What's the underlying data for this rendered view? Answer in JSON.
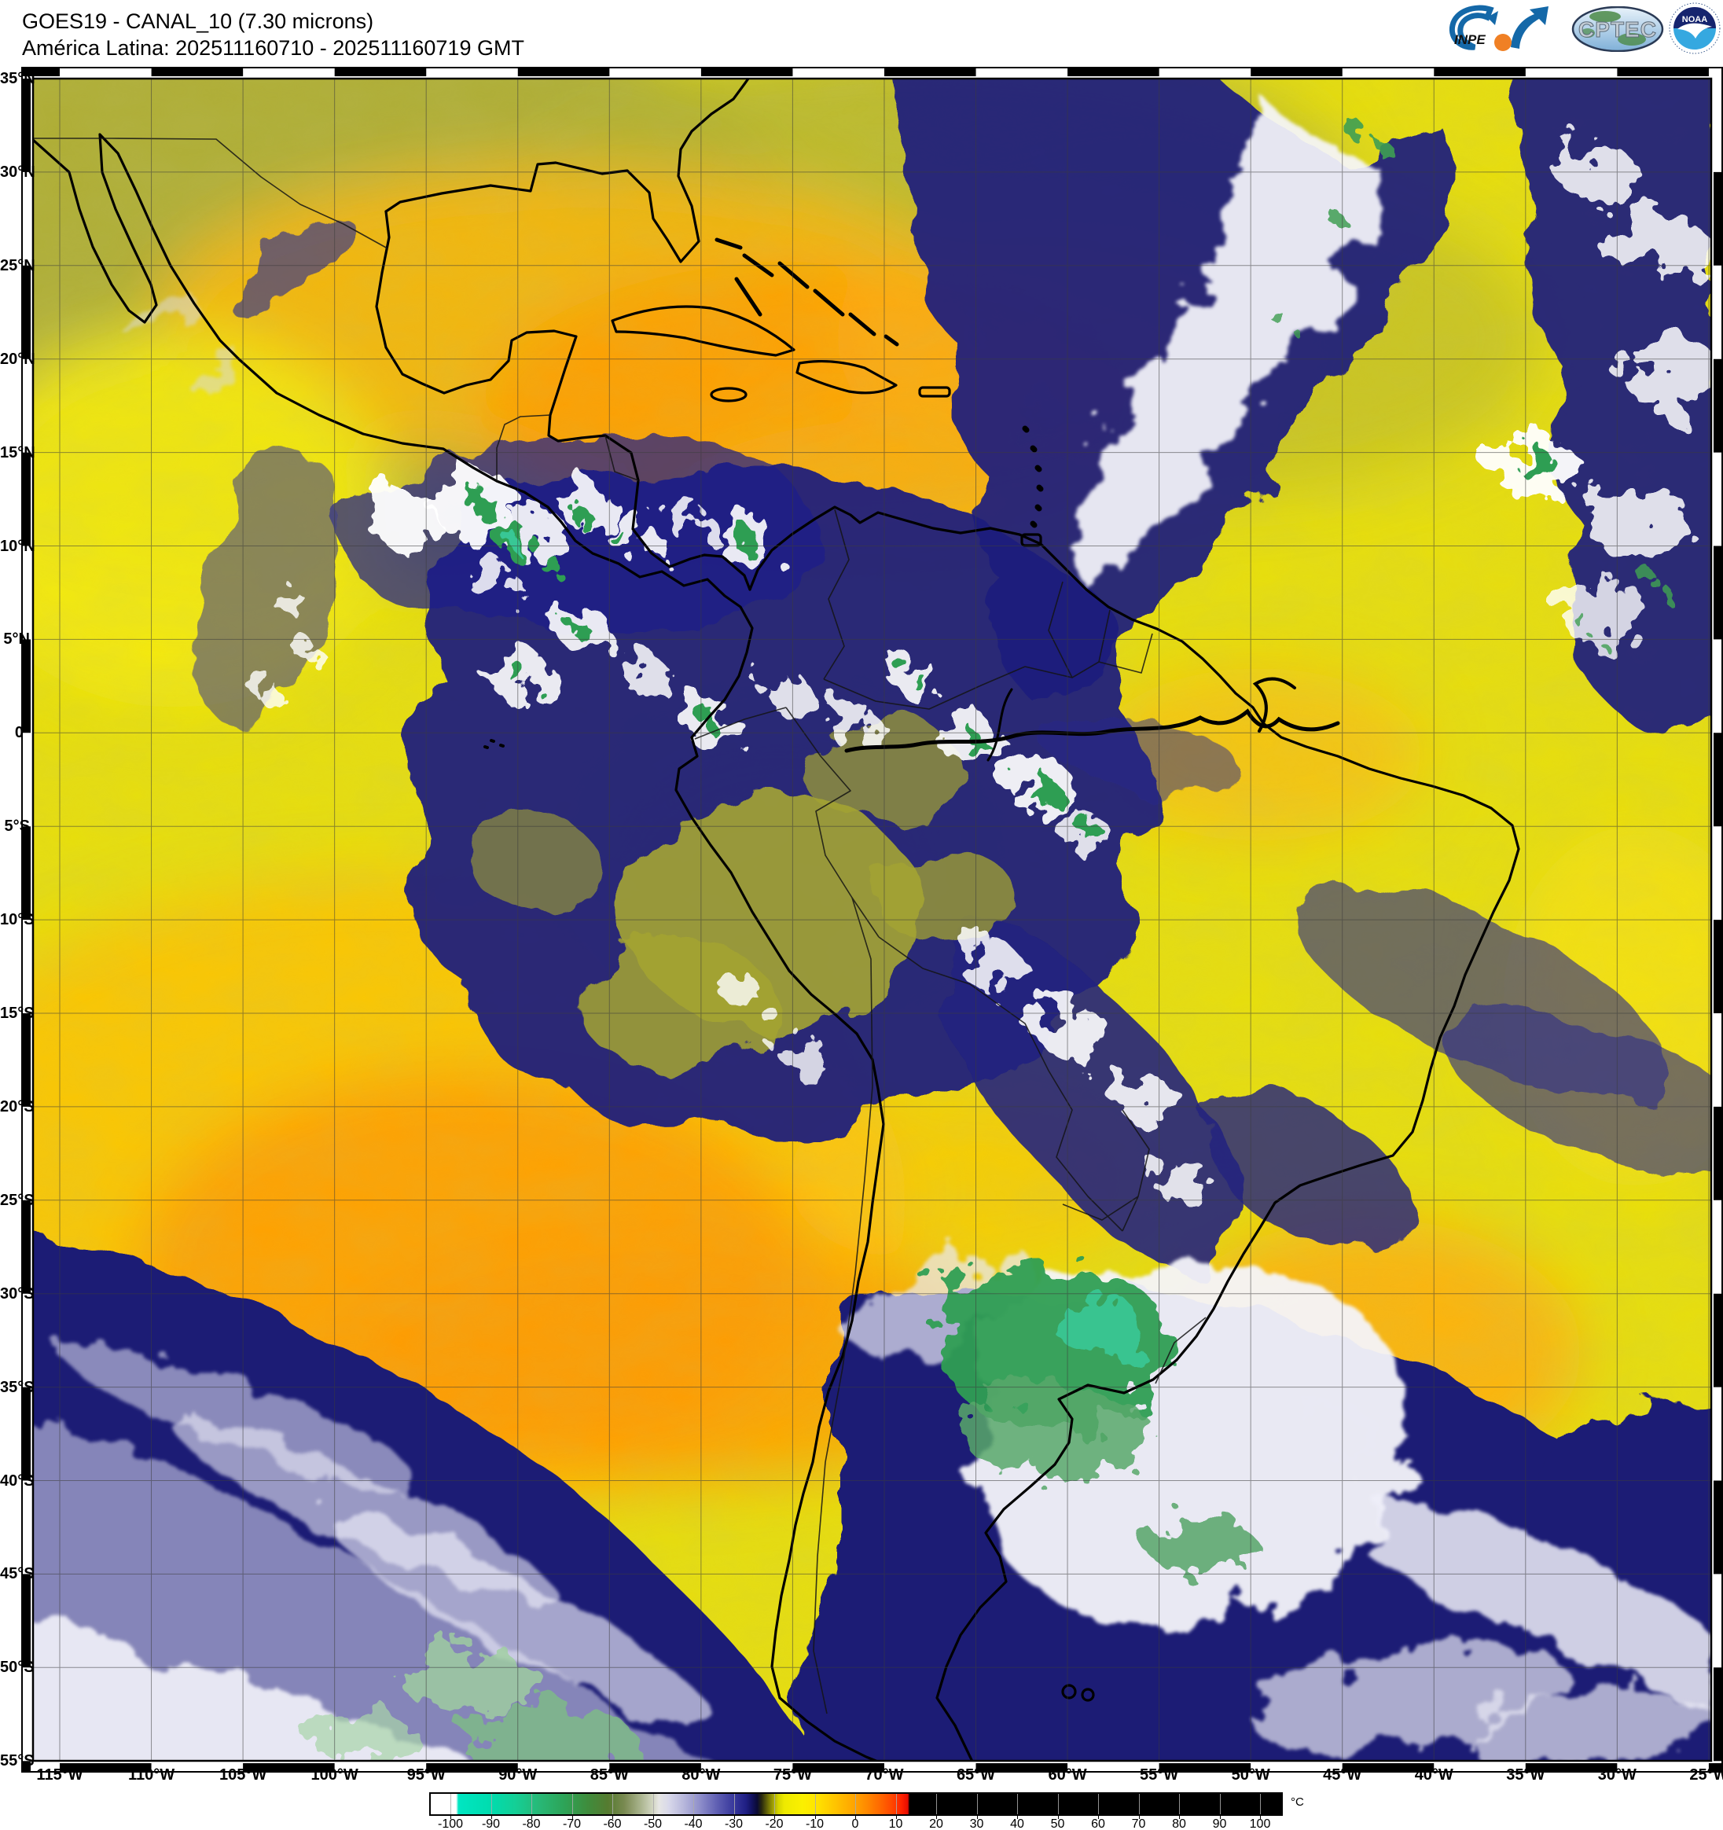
{
  "header": {
    "line1": "GOES19 - CANAL_10 (7.30 microns)",
    "line2": "América Latina: 202511160710 - 202511160719 GMT"
  },
  "logos": {
    "inpe_label": "INPE",
    "cptec_label": "CPTEC",
    "noaa_label": "NOAA"
  },
  "map": {
    "lat_labels": [
      "35°N",
      "30°N",
      "25°N",
      "20°N",
      "15°N",
      "10°N",
      "5°N",
      "0°",
      "5°S",
      "10°S",
      "15°S",
      "20°S",
      "25°S",
      "30°S",
      "35°S",
      "40°S",
      "45°S",
      "50°S",
      "55°S"
    ],
    "lon_labels": [
      "115°W",
      "110°W",
      "105°W",
      "100°W",
      "95°W",
      "90°W",
      "85°W",
      "80°W",
      "75°W",
      "70°W",
      "65°W",
      "60°W",
      "55°W",
      "50°W",
      "45°W",
      "40°W",
      "35°W",
      "30°W",
      "25°W"
    ]
  },
  "colorbar": {
    "unit": "°C",
    "ticks": [
      -100,
      -90,
      -80,
      -70,
      -60,
      -50,
      -40,
      -30,
      -20,
      -10,
      0,
      10,
      20,
      30,
      40,
      50,
      60,
      70,
      80,
      90,
      100
    ],
    "stops": [
      [
        -104,
        "#ffffff"
      ],
      [
        -98.6,
        "#ffffff"
      ],
      [
        -98,
        "#00e6c2"
      ],
      [
        -90,
        "#00dcae"
      ],
      [
        -84,
        "#14cf96"
      ],
      [
        -78,
        "#28b876"
      ],
      [
        -72,
        "#2da458"
      ],
      [
        -66,
        "#3f8c3c"
      ],
      [
        -61,
        "#567b30"
      ],
      [
        -57,
        "#7a8a52"
      ],
      [
        -53,
        "#aab48e"
      ],
      [
        -50,
        "#d2d6c2"
      ],
      [
        -48.5,
        "#e6e6e4"
      ],
      [
        -46,
        "#d8d8ea"
      ],
      [
        -42,
        "#b4b4da"
      ],
      [
        -38,
        "#8a8ac8"
      ],
      [
        -34,
        "#5e5eb2"
      ],
      [
        -30,
        "#38389c"
      ],
      [
        -27,
        "#1f1f84"
      ],
      [
        -25.5,
        "#12125e"
      ],
      [
        -24.2,
        "#0a0a34"
      ],
      [
        -23.2,
        "#26260f"
      ],
      [
        -22,
        "#5a5a08"
      ],
      [
        -20.5,
        "#9a9a04"
      ],
      [
        -19,
        "#d4d400"
      ],
      [
        -17.5,
        "#eeea00"
      ],
      [
        -13,
        "#fbf000"
      ],
      [
        -10,
        "#ffe600"
      ],
      [
        -7,
        "#ffd200"
      ],
      [
        -3.5,
        "#ffba00"
      ],
      [
        0,
        "#ffa200"
      ],
      [
        3,
        "#ff8800"
      ],
      [
        6,
        "#ff6a00"
      ],
      [
        9,
        "#ff4800"
      ],
      [
        11.5,
        "#ff2200"
      ],
      [
        13,
        "#e60c00"
      ],
      [
        13.4,
        "#000000"
      ],
      [
        100,
        "#000000"
      ]
    ]
  },
  "palette": {
    "dry_yellow": "#e8df0c",
    "olive_land": "#aaa93a",
    "warm_orange": "#ffa204",
    "moist_navy": "#1c1c7c",
    "cloud_white": "#f6f6fc",
    "cold_green": "#2f9e53",
    "coldest_teal": "#38c795"
  }
}
